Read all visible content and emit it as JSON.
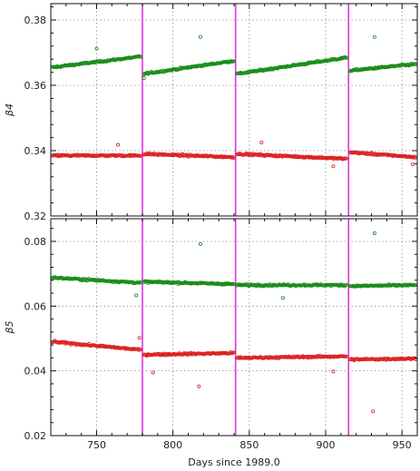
{
  "chart_data": [
    {
      "type": "scatter",
      "panel": "top",
      "ylabel": "β4",
      "xlabel": "",
      "xlim": [
        720,
        960
      ],
      "ylim": [
        0.32,
        0.385
      ],
      "yticks": [
        0.32,
        0.34,
        0.36,
        0.38
      ],
      "ytick_labels": [
        "0.32",
        "0.34",
        "0.36",
        "0.38"
      ],
      "xticks": [
        750,
        800,
        850,
        900,
        950
      ],
      "xtick_labels": [],
      "grid": "dotted",
      "vlines": [
        780,
        841,
        915
      ],
      "series": [
        {
          "color": "#1a8c1a",
          "segments": [
            {
              "x0": 721,
              "x1": 779,
              "y0": 0.3655,
              "y1": 0.3688
            },
            {
              "x0": 781,
              "x1": 840,
              "y0": 0.3635,
              "y1": 0.3675
            },
            {
              "x0": 842,
              "x1": 914,
              "y0": 0.3635,
              "y1": 0.3685
            },
            {
              "x0": 916,
              "x1": 959,
              "y0": 0.3645,
              "y1": 0.3665
            }
          ],
          "outliers": [
            [
              818,
              0.3748
            ],
            [
              932,
              0.3748
            ],
            [
              750,
              0.3712
            ],
            [
              781,
              0.3622
            ]
          ]
        },
        {
          "color": "#dd2222",
          "segments": [
            {
              "x0": 721,
              "x1": 779,
              "y0": 0.3385,
              "y1": 0.3385
            },
            {
              "x0": 781,
              "x1": 840,
              "y0": 0.339,
              "y1": 0.338
            },
            {
              "x0": 842,
              "x1": 914,
              "y0": 0.339,
              "y1": 0.3375
            },
            {
              "x0": 916,
              "x1": 959,
              "y0": 0.3395,
              "y1": 0.338
            }
          ],
          "outliers": [
            [
              764,
              0.3418
            ],
            [
              858,
              0.3425
            ],
            [
              905,
              0.3352
            ],
            [
              957,
              0.3358
            ]
          ]
        }
      ]
    },
    {
      "type": "scatter",
      "panel": "bottom",
      "ylabel": "β5",
      "xlabel": "Days since 1989.0",
      "xlim": [
        720,
        960
      ],
      "ylim": [
        0.02,
        0.087
      ],
      "yticks": [
        0.02,
        0.04,
        0.06,
        0.08
      ],
      "ytick_labels": [
        "0.02",
        "0.04",
        "0.06",
        "0.08"
      ],
      "xticks": [
        750,
        800,
        850,
        900,
        950
      ],
      "xtick_labels": [
        "750",
        "800",
        "850",
        "900",
        "950"
      ],
      "grid": "dotted",
      "vlines": [
        780,
        841,
        915
      ],
      "series": [
        {
          "color": "#1a8c1a",
          "segments": [
            {
              "x0": 721,
              "x1": 779,
              "y0": 0.0688,
              "y1": 0.0672
            },
            {
              "x0": 781,
              "x1": 840,
              "y0": 0.0675,
              "y1": 0.0668
            },
            {
              "x0": 842,
              "x1": 914,
              "y0": 0.0665,
              "y1": 0.0665
            },
            {
              "x0": 916,
              "x1": 959,
              "y0": 0.0662,
              "y1": 0.0665
            }
          ],
          "outliers": [
            [
              818,
              0.0792
            ],
            [
              932,
              0.0825
            ],
            [
              776,
              0.0633
            ],
            [
              872,
              0.0625
            ]
          ]
        },
        {
          "color": "#dd2222",
          "segments": [
            {
              "x0": 721,
              "x1": 779,
              "y0": 0.049,
              "y1": 0.0465
            },
            {
              "x0": 781,
              "x1": 840,
              "y0": 0.045,
              "y1": 0.0455
            },
            {
              "x0": 842,
              "x1": 914,
              "y0": 0.044,
              "y1": 0.0445
            },
            {
              "x0": 916,
              "x1": 959,
              "y0": 0.0435,
              "y1": 0.0438
            }
          ],
          "outliers": [
            [
              817,
              0.0352
            ],
            [
              931,
              0.0275
            ],
            [
              778,
              0.0502
            ],
            [
              787,
              0.0395
            ],
            [
              905,
              0.0398
            ]
          ]
        }
      ]
    }
  ]
}
